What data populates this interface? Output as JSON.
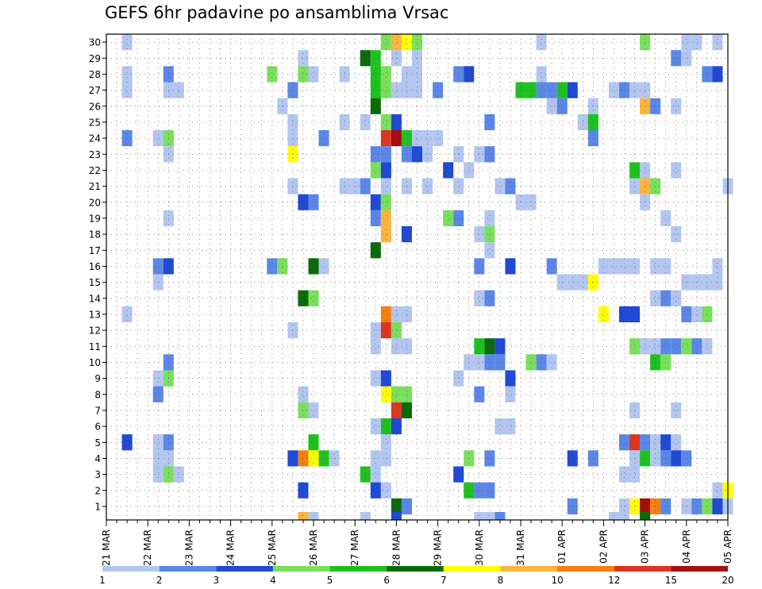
{
  "chart_data": {
    "type": "heatmap",
    "title": "GEFS 6hr padavine po ansamblima Vrsac",
    "xlabel": "",
    "ylabel": "",
    "x_tick_labels": [
      "21 MAR",
      "22 MAR",
      "23 MAR",
      "24 MAR",
      "25 MAR",
      "26 MAR",
      "27 MAR",
      "28 MAR",
      "29 MAR",
      "30 MAR",
      "31 MAR",
      "01 APR",
      "02 APR",
      "03 APR",
      "04 APR",
      "05 APR"
    ],
    "x_ticks_per_label": 4,
    "y_tick_labels": [
      "1",
      "2",
      "3",
      "4",
      "5",
      "6",
      "7",
      "8",
      "9",
      "10",
      "11",
      "12",
      "13",
      "14",
      "15",
      "16",
      "17",
      "18",
      "19",
      "20",
      "21",
      "22",
      "23",
      "24",
      "25",
      "26",
      "27",
      "28",
      "29",
      "30"
    ],
    "grid": "dotted",
    "colorbar": {
      "labels": [
        "1",
        "2",
        "3",
        "4",
        "5",
        "6",
        "7",
        "8",
        "10",
        "12",
        "15",
        "20"
      ],
      "colors": [
        "#b3c6f0",
        "#5a87e8",
        "#1f49d6",
        "#78e05a",
        "#1ec21e",
        "#0a6b0a",
        "#ffff00",
        "#fcb43c",
        "#f57f0f",
        "#e0341e",
        "#a50f0f"
      ]
    },
    "cells_note": "each cell: [member, time_step_6h_from_21MAR00, class 1-11]",
    "cells": [
      [
        30,
        2,
        1
      ],
      [
        30,
        27,
        4
      ],
      [
        30,
        28,
        8
      ],
      [
        30,
        29,
        7
      ],
      [
        30,
        30,
        4
      ],
      [
        30,
        42,
        1
      ],
      [
        30,
        52,
        4
      ],
      [
        30,
        56,
        1
      ],
      [
        30,
        57,
        1
      ],
      [
        30,
        59,
        1
      ],
      [
        29,
        19,
        1
      ],
      [
        29,
        25,
        6
      ],
      [
        29,
        26,
        5
      ],
      [
        29,
        28,
        1
      ],
      [
        29,
        30,
        1
      ],
      [
        29,
        55,
        2
      ],
      [
        29,
        56,
        1
      ],
      [
        28,
        2,
        1
      ],
      [
        28,
        6,
        2
      ],
      [
        28,
        16,
        4
      ],
      [
        28,
        19,
        4
      ],
      [
        28,
        20,
        1
      ],
      [
        28,
        23,
        1
      ],
      [
        28,
        26,
        5
      ],
      [
        28,
        27,
        4
      ],
      [
        28,
        29,
        1
      ],
      [
        28,
        30,
        1
      ],
      [
        28,
        34,
        2
      ],
      [
        28,
        35,
        3
      ],
      [
        28,
        42,
        1
      ],
      [
        28,
        58,
        2
      ],
      [
        28,
        59,
        3
      ],
      [
        27,
        2,
        1
      ],
      [
        27,
        6,
        1
      ],
      [
        27,
        7,
        1
      ],
      [
        27,
        18,
        2
      ],
      [
        27,
        26,
        5
      ],
      [
        27,
        27,
        4
      ],
      [
        27,
        28,
        1
      ],
      [
        27,
        29,
        1
      ],
      [
        27,
        30,
        1
      ],
      [
        27,
        32,
        2
      ],
      [
        27,
        40,
        5
      ],
      [
        27,
        41,
        5
      ],
      [
        27,
        42,
        2
      ],
      [
        27,
        43,
        2
      ],
      [
        27,
        44,
        5
      ],
      [
        27,
        45,
        3
      ],
      [
        27,
        49,
        1
      ],
      [
        27,
        50,
        2
      ],
      [
        27,
        51,
        1
      ],
      [
        27,
        52,
        1
      ],
      [
        26,
        17,
        1
      ],
      [
        26,
        26,
        6
      ],
      [
        26,
        43,
        1
      ],
      [
        26,
        44,
        2
      ],
      [
        26,
        47,
        1
      ],
      [
        26,
        52,
        8
      ],
      [
        26,
        53,
        2
      ],
      [
        26,
        55,
        1
      ],
      [
        25,
        18,
        1
      ],
      [
        25,
        23,
        1
      ],
      [
        25,
        25,
        1
      ],
      [
        25,
        27,
        4
      ],
      [
        25,
        28,
        3
      ],
      [
        25,
        37,
        2
      ],
      [
        25,
        46,
        1
      ],
      [
        25,
        47,
        5
      ],
      [
        24,
        2,
        2
      ],
      [
        24,
        5,
        1
      ],
      [
        24,
        6,
        4
      ],
      [
        24,
        18,
        1
      ],
      [
        24,
        21,
        2
      ],
      [
        24,
        27,
        10
      ],
      [
        24,
        28,
        11
      ],
      [
        24,
        29,
        5
      ],
      [
        24,
        30,
        1
      ],
      [
        24,
        31,
        1
      ],
      [
        24,
        32,
        1
      ],
      [
        24,
        47,
        2
      ],
      [
        23,
        6,
        1
      ],
      [
        23,
        18,
        7
      ],
      [
        23,
        26,
        2
      ],
      [
        23,
        27,
        2
      ],
      [
        23,
        29,
        2
      ],
      [
        23,
        30,
        3
      ],
      [
        23,
        31,
        1
      ],
      [
        23,
        34,
        1
      ],
      [
        23,
        36,
        1
      ],
      [
        23,
        37,
        2
      ],
      [
        22,
        26,
        4
      ],
      [
        22,
        27,
        3
      ],
      [
        22,
        33,
        3
      ],
      [
        22,
        35,
        1
      ],
      [
        22,
        51,
        5
      ],
      [
        22,
        52,
        1
      ],
      [
        22,
        55,
        1
      ],
      [
        21,
        18,
        1
      ],
      [
        21,
        23,
        1
      ],
      [
        21,
        24,
        1
      ],
      [
        21,
        25,
        2
      ],
      [
        21,
        27,
        1
      ],
      [
        21,
        29,
        1
      ],
      [
        21,
        31,
        1
      ],
      [
        21,
        34,
        1
      ],
      [
        21,
        38,
        1
      ],
      [
        21,
        39,
        2
      ],
      [
        21,
        51,
        1
      ],
      [
        21,
        52,
        8
      ],
      [
        21,
        53,
        4
      ],
      [
        21,
        60,
        1
      ],
      [
        20,
        19,
        3
      ],
      [
        20,
        20,
        2
      ],
      [
        20,
        26,
        3
      ],
      [
        20,
        27,
        4
      ],
      [
        20,
        40,
        1
      ],
      [
        20,
        41,
        1
      ],
      [
        20,
        52,
        1
      ],
      [
        19,
        6,
        1
      ],
      [
        19,
        26,
        2
      ],
      [
        19,
        27,
        8
      ],
      [
        19,
        33,
        4
      ],
      [
        19,
        34,
        2
      ],
      [
        19,
        37,
        1
      ],
      [
        19,
        54,
        1
      ],
      [
        18,
        27,
        8
      ],
      [
        18,
        29,
        3
      ],
      [
        18,
        36,
        1
      ],
      [
        18,
        37,
        4
      ],
      [
        18,
        55,
        1
      ],
      [
        17,
        26,
        6
      ],
      [
        17,
        37,
        1
      ],
      [
        16,
        5,
        2
      ],
      [
        16,
        6,
        3
      ],
      [
        16,
        16,
        2
      ],
      [
        16,
        17,
        4
      ],
      [
        16,
        20,
        6
      ],
      [
        16,
        21,
        1
      ],
      [
        16,
        36,
        2
      ],
      [
        16,
        39,
        3
      ],
      [
        16,
        43,
        2
      ],
      [
        16,
        48,
        1
      ],
      [
        16,
        49,
        1
      ],
      [
        16,
        50,
        1
      ],
      [
        16,
        51,
        1
      ],
      [
        16,
        53,
        1
      ],
      [
        16,
        54,
        1
      ],
      [
        16,
        59,
        1
      ],
      [
        15,
        5,
        1
      ],
      [
        15,
        44,
        1
      ],
      [
        15,
        45,
        1
      ],
      [
        15,
        46,
        1
      ],
      [
        15,
        47,
        7
      ],
      [
        15,
        56,
        1
      ],
      [
        15,
        57,
        1
      ],
      [
        15,
        58,
        1
      ],
      [
        15,
        59,
        1
      ],
      [
        14,
        19,
        6
      ],
      [
        14,
        20,
        4
      ],
      [
        14,
        36,
        1
      ],
      [
        14,
        37,
        2
      ],
      [
        14,
        53,
        1
      ],
      [
        14,
        54,
        2
      ],
      [
        14,
        55,
        1
      ],
      [
        13,
        2,
        1
      ],
      [
        13,
        27,
        9
      ],
      [
        13,
        28,
        1
      ],
      [
        13,
        29,
        1
      ],
      [
        13,
        48,
        7
      ],
      [
        13,
        50,
        3
      ],
      [
        13,
        51,
        3
      ],
      [
        13,
        56,
        2
      ],
      [
        13,
        57,
        1
      ],
      [
        13,
        58,
        4
      ],
      [
        12,
        18,
        1
      ],
      [
        12,
        26,
        1
      ],
      [
        12,
        27,
        10
      ],
      [
        12,
        28,
        4
      ],
      [
        11,
        26,
        1
      ],
      [
        11,
        28,
        1
      ],
      [
        11,
        29,
        1
      ],
      [
        11,
        36,
        5
      ],
      [
        11,
        37,
        6
      ],
      [
        11,
        38,
        3
      ],
      [
        11,
        51,
        4
      ],
      [
        11,
        52,
        1
      ],
      [
        11,
        53,
        1
      ],
      [
        11,
        54,
        2
      ],
      [
        11,
        55,
        2
      ],
      [
        11,
        56,
        4
      ],
      [
        11,
        57,
        2
      ],
      [
        11,
        58,
        1
      ],
      [
        10,
        6,
        2
      ],
      [
        10,
        35,
        1
      ],
      [
        10,
        36,
        1
      ],
      [
        10,
        37,
        2
      ],
      [
        10,
        38,
        2
      ],
      [
        10,
        41,
        4
      ],
      [
        10,
        42,
        2
      ],
      [
        10,
        43,
        1
      ],
      [
        10,
        53,
        5
      ],
      [
        10,
        54,
        4
      ],
      [
        9,
        5,
        1
      ],
      [
        9,
        6,
        4
      ],
      [
        9,
        26,
        1
      ],
      [
        9,
        27,
        3
      ],
      [
        9,
        34,
        1
      ],
      [
        9,
        39,
        3
      ],
      [
        8,
        5,
        2
      ],
      [
        8,
        19,
        1
      ],
      [
        8,
        27,
        7
      ],
      [
        8,
        28,
        4
      ],
      [
        8,
        29,
        4
      ],
      [
        8,
        36,
        2
      ],
      [
        8,
        39,
        1
      ],
      [
        7,
        19,
        4
      ],
      [
        7,
        20,
        1
      ],
      [
        7,
        28,
        10
      ],
      [
        7,
        29,
        6
      ],
      [
        7,
        51,
        1
      ],
      [
        7,
        55,
        1
      ],
      [
        6,
        26,
        1
      ],
      [
        6,
        27,
        5
      ],
      [
        6,
        28,
        3
      ],
      [
        6,
        38,
        1
      ],
      [
        6,
        39,
        1
      ],
      [
        5,
        2,
        3
      ],
      [
        5,
        5,
        1
      ],
      [
        5,
        6,
        2
      ],
      [
        5,
        20,
        5
      ],
      [
        5,
        27,
        1
      ],
      [
        5,
        50,
        2
      ],
      [
        5,
        51,
        10
      ],
      [
        5,
        52,
        2
      ],
      [
        5,
        53,
        1
      ],
      [
        5,
        54,
        3
      ],
      [
        5,
        55,
        1
      ],
      [
        4,
        5,
        1
      ],
      [
        4,
        6,
        1
      ],
      [
        4,
        18,
        3
      ],
      [
        4,
        19,
        9
      ],
      [
        4,
        20,
        7
      ],
      [
        4,
        21,
        5
      ],
      [
        4,
        22,
        1
      ],
      [
        4,
        26,
        1
      ],
      [
        4,
        27,
        1
      ],
      [
        4,
        35,
        4
      ],
      [
        4,
        37,
        2
      ],
      [
        4,
        45,
        3
      ],
      [
        4,
        47,
        2
      ],
      [
        4,
        51,
        1
      ],
      [
        4,
        52,
        5
      ],
      [
        4,
        53,
        1
      ],
      [
        4,
        54,
        2
      ],
      [
        4,
        55,
        3
      ],
      [
        4,
        56,
        2
      ],
      [
        3,
        5,
        1
      ],
      [
        3,
        6,
        4
      ],
      [
        3,
        7,
        1
      ],
      [
        3,
        25,
        5
      ],
      [
        3,
        26,
        1
      ],
      [
        3,
        34,
        3
      ],
      [
        3,
        50,
        1
      ],
      [
        3,
        51,
        1
      ],
      [
        2,
        19,
        3
      ],
      [
        2,
        26,
        3
      ],
      [
        2,
        27,
        1
      ],
      [
        2,
        35,
        5
      ],
      [
        2,
        36,
        2
      ],
      [
        2,
        37,
        2
      ],
      [
        2,
        59,
        1
      ],
      [
        2,
        60,
        7
      ],
      [
        1,
        28,
        6
      ],
      [
        1,
        29,
        2
      ],
      [
        1,
        45,
        2
      ],
      [
        1,
        50,
        1
      ],
      [
        1,
        51,
        7
      ],
      [
        1,
        52,
        11
      ],
      [
        1,
        53,
        9
      ],
      [
        1,
        54,
        2
      ],
      [
        1,
        56,
        1
      ],
      [
        1,
        57,
        2
      ],
      [
        1,
        58,
        4
      ],
      [
        1,
        59,
        3
      ],
      [
        1,
        60,
        1
      ],
      [
        0,
        19,
        8
      ],
      [
        0,
        20,
        1
      ],
      [
        0,
        25,
        1
      ],
      [
        0,
        28,
        3
      ],
      [
        0,
        36,
        1
      ],
      [
        0,
        37,
        1
      ],
      [
        0,
        38,
        2
      ],
      [
        0,
        49,
        1
      ],
      [
        0,
        50,
        1
      ],
      [
        0,
        52,
        6
      ]
    ]
  }
}
